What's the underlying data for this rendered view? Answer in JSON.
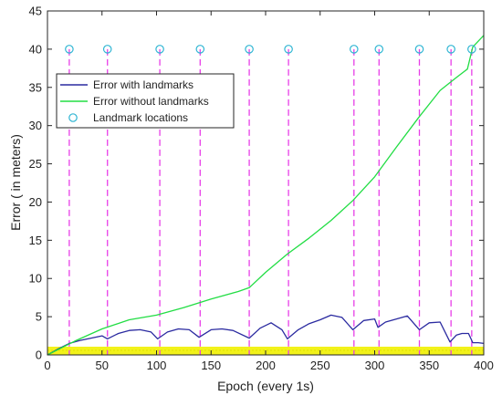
{
  "chart_data": {
    "type": "line",
    "title": "",
    "xlabel": "Epoch (every 1s)",
    "ylabel": "Error ( in meters)",
    "xlim": [
      0,
      400
    ],
    "ylim": [
      0,
      45
    ],
    "xticks": [
      0,
      50,
      100,
      150,
      200,
      250,
      300,
      350,
      400
    ],
    "yticks": [
      0,
      5,
      10,
      15,
      20,
      25,
      30,
      35,
      40,
      45
    ],
    "grid": false,
    "legend_position": "top-left",
    "series": [
      {
        "name": "Error with landmarks",
        "color": "#2a2aa0",
        "style": "solid",
        "x": [
          0,
          10,
          20,
          30,
          40,
          50,
          55,
          65,
          75,
          85,
          95,
          101,
          110,
          120,
          130,
          139,
          150,
          160,
          170,
          185,
          195,
          205,
          215,
          220,
          230,
          240,
          250,
          260,
          270,
          280,
          290,
          300,
          303,
          310,
          320,
          330,
          341,
          350,
          360,
          369,
          375,
          380,
          386,
          390,
          395,
          400
        ],
        "y": [
          0,
          0.8,
          1.5,
          1.9,
          2.2,
          2.5,
          2.1,
          2.8,
          3.2,
          3.3,
          3.0,
          2.1,
          3.0,
          3.4,
          3.3,
          2.3,
          3.3,
          3.4,
          3.2,
          2.2,
          3.5,
          4.2,
          3.3,
          2.1,
          3.3,
          4.1,
          4.6,
          5.2,
          4.9,
          3.3,
          4.5,
          4.7,
          3.6,
          4.3,
          4.7,
          5.1,
          3.3,
          4.2,
          4.3,
          1.7,
          2.6,
          2.8,
          2.8,
          1.6,
          1.6,
          1.5
        ]
      },
      {
        "name": "Error without landmarks",
        "color": "#22dd44",
        "style": "solid",
        "x": [
          0,
          25,
          50,
          75,
          100,
          125,
          150,
          175,
          185,
          200,
          220,
          240,
          260,
          280,
          300,
          320,
          340,
          360,
          375,
          385,
          390,
          400
        ],
        "y": [
          0,
          1.8,
          3.4,
          4.6,
          5.2,
          6.2,
          7.3,
          8.3,
          8.8,
          10.8,
          13.2,
          15.3,
          17.6,
          20.2,
          23.3,
          27.2,
          31.0,
          34.6,
          36.3,
          37.4,
          40.3,
          41.8
        ]
      },
      {
        "name": "Landmark locations",
        "color": "#2fb5d3",
        "marker": "circle",
        "x": [
          20,
          55,
          103,
          140,
          185,
          221,
          281,
          304,
          341,
          370,
          389
        ],
        "y": [
          40,
          40,
          40,
          40,
          40,
          40,
          40,
          40,
          40,
          40,
          40
        ]
      }
    ],
    "vertical_lines": {
      "color": "#e83ee8",
      "style": "dashed",
      "x": [
        20,
        55,
        103,
        140,
        185,
        221,
        281,
        304,
        341,
        370,
        389
      ]
    },
    "baseline_band": {
      "color": "#f2f21a",
      "x_range": [
        0,
        400
      ]
    }
  }
}
